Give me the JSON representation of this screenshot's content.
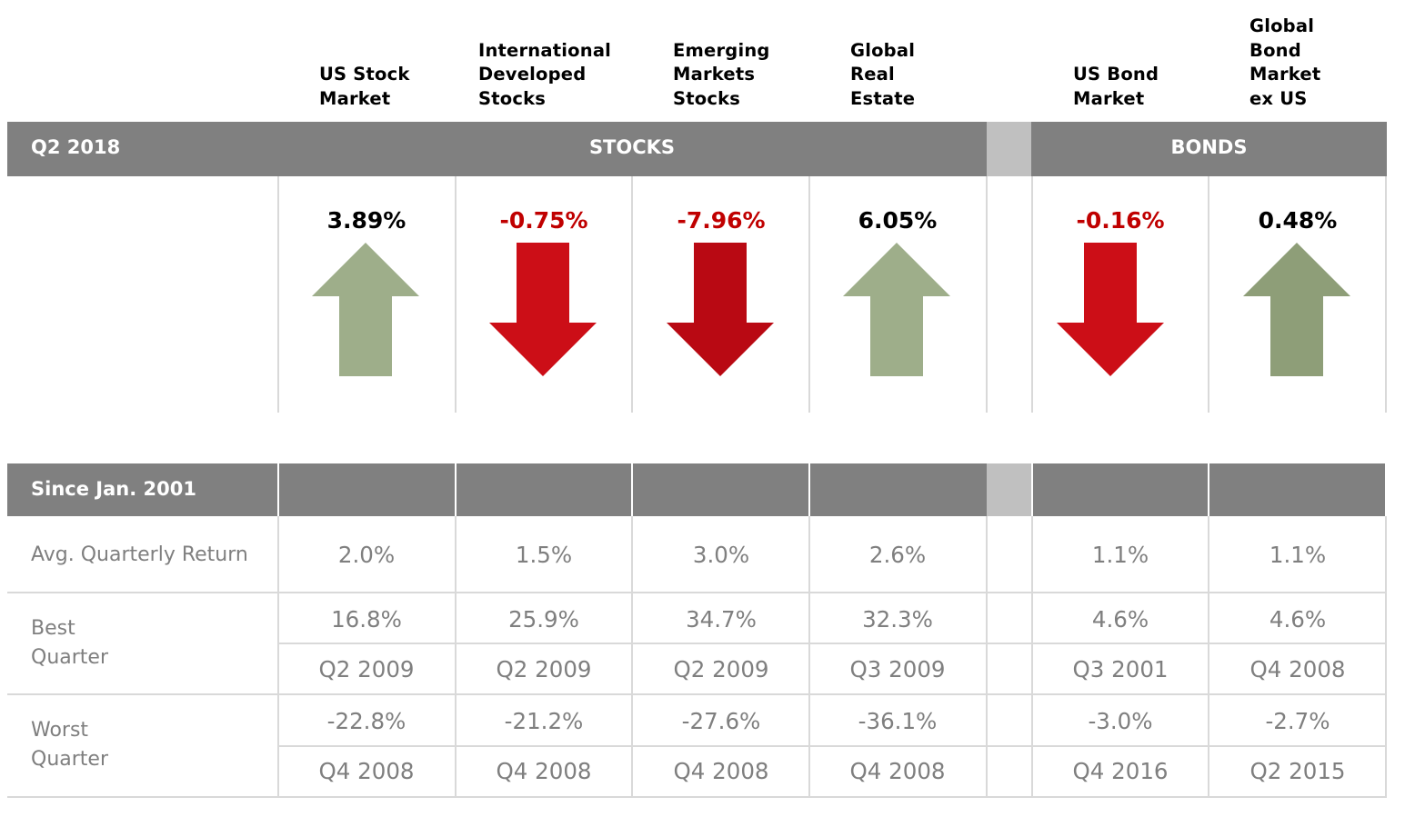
{
  "chart_data": {
    "type": "table",
    "period_label": "Q2 2018",
    "groups": [
      "STOCKS",
      "BONDS"
    ],
    "columns": [
      {
        "name": "US Stock Market",
        "header_lines": [
          "US Stock",
          "Market"
        ],
        "group": "STOCKS",
        "q_return": 3.89,
        "q_return_label": "3.89%",
        "avg": "2.0%",
        "best": "16.8%",
        "best_q": "Q2 2009",
        "worst": "-22.8%",
        "worst_q": "Q4 2008",
        "arrow_color": "#9eae8a"
      },
      {
        "name": "International Developed Stocks",
        "header_lines": [
          "International",
          "Developed",
          "Stocks"
        ],
        "group": "STOCKS",
        "q_return": -0.75,
        "q_return_label": "-0.75%",
        "avg": "1.5%",
        "best": "25.9%",
        "best_q": "Q2 2009",
        "worst": "-21.2%",
        "worst_q": "Q4 2008",
        "arrow_color": "#cc0e17"
      },
      {
        "name": "Emerging Markets Stocks",
        "header_lines": [
          "Emerging",
          "Markets",
          "Stocks"
        ],
        "group": "STOCKS",
        "q_return": -7.96,
        "q_return_label": "-7.96%",
        "avg": "3.0%",
        "best": "34.7%",
        "best_q": "Q2 2009",
        "worst": "-27.6%",
        "worst_q": "Q4 2008",
        "arrow_color": "#b90913"
      },
      {
        "name": "Global Real Estate",
        "header_lines": [
          "Global",
          "Real",
          "Estate"
        ],
        "group": "STOCKS",
        "q_return": 6.05,
        "q_return_label": "6.05%",
        "avg": "2.6%",
        "best": "32.3%",
        "best_q": "Q3 2009",
        "worst": "-36.1%",
        "worst_q": "Q4 2008",
        "arrow_color": "#9eae8a"
      },
      {
        "name": "US Bond Market",
        "header_lines": [
          "US Bond",
          "Market"
        ],
        "group": "BONDS",
        "q_return": -0.16,
        "q_return_label": "-0.16%",
        "avg": "1.1%",
        "best": "4.6%",
        "best_q": "Q3 2001",
        "worst": "-3.0%",
        "worst_q": "Q4 2016",
        "arrow_color": "#cc0e17"
      },
      {
        "name": "Global Bond Market ex US",
        "header_lines": [
          "Global",
          "Bond",
          "Market",
          "ex US"
        ],
        "group": "BONDS",
        "q_return": 0.48,
        "q_return_label": "0.48%",
        "avg": "1.1%",
        "best": "4.6%",
        "best_q": "Q4 2008",
        "worst": "-2.7%",
        "worst_q": "Q2 2015",
        "arrow_color": "#8e9e78"
      }
    ],
    "since_label": "Since Jan. 2001",
    "row_labels": {
      "avg": "Avg. Quarterly Return",
      "best": [
        "Best",
        "Quarter"
      ],
      "worst": [
        "Worst",
        "Quarter"
      ]
    },
    "colors": {
      "header_bar": "#808080",
      "separator": "#c0c0c0",
      "negative_text": "#c00000",
      "positive_text": "#000000",
      "cell_text": "#7f7f7f"
    }
  }
}
